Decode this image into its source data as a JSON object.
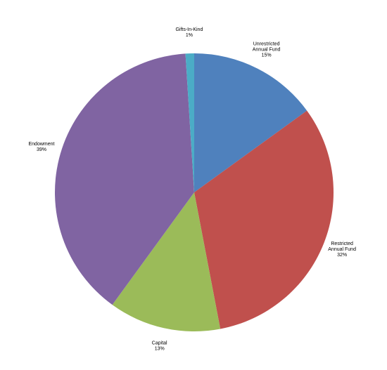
{
  "chart_data": {
    "type": "pie",
    "categories": [
      "Unrestricted\nAnnual Fund",
      "Restricted\nAnnual Fund",
      "Capital",
      "Endowment",
      "Gifts-In-Kind"
    ],
    "values": [
      15,
      32,
      13,
      39,
      1
    ],
    "value_labels": [
      "15%",
      "32%",
      "13%",
      "39%",
      "1%"
    ],
    "colors": [
      "#4f81bd",
      "#c0504d",
      "#9bbb59",
      "#8064a2",
      "#4bacc6"
    ]
  }
}
